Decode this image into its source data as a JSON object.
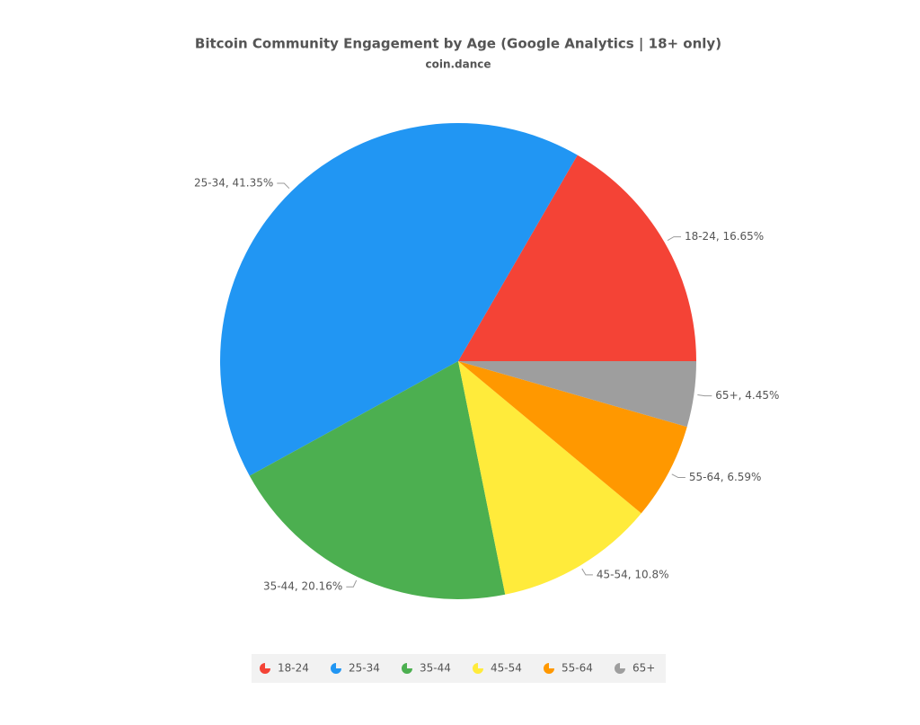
{
  "chart_data": {
    "type": "pie",
    "title": "Bitcoin Community Engagement by Age (Google Analytics | 18+ only)",
    "subtitle": "coin.dance",
    "categories": [
      "18-24",
      "25-34",
      "35-44",
      "45-54",
      "55-64",
      "65+"
    ],
    "values": [
      16.65,
      41.35,
      20.16,
      10.8,
      6.59,
      4.45
    ],
    "value_labels": [
      "18-24, 16.65%",
      "25-34, 41.35%",
      "35-44, 20.16%",
      "45-54, 10.8%",
      "55-64, 6.59%",
      "65+, 4.45%"
    ],
    "colors": [
      "#f44336",
      "#2196f3",
      "#4caf50",
      "#ffeb3b",
      "#ff9800",
      "#9e9e9e"
    ],
    "legend": "bottom"
  }
}
